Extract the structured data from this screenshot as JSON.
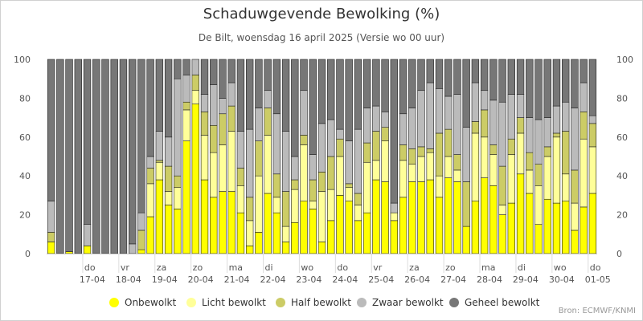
{
  "chart_data": {
    "type": "bar",
    "stacked": true,
    "title": "Schaduwgevende Bewolking (%)",
    "subtitle": "De Bilt, woensdag 16 april 2025 (Versie wo 00 uur)",
    "credit": "Bron: ECMWF/KNMI",
    "ylim": [
      0,
      100
    ],
    "yticks": [
      0,
      20,
      40,
      60,
      80,
      100
    ],
    "grid": false,
    "legend_position": "bottom",
    "x_day_labels": [
      {
        "day": "do",
        "date": "17-04"
      },
      {
        "day": "vr",
        "date": "18-04"
      },
      {
        "day": "za",
        "date": "19-04"
      },
      {
        "day": "zo",
        "date": "20-04"
      },
      {
        "day": "ma",
        "date": "21-04"
      },
      {
        "day": "di",
        "date": "22-04"
      },
      {
        "day": "wo",
        "date": "23-04"
      },
      {
        "day": "do",
        "date": "24-04"
      },
      {
        "day": "vr",
        "date": "25-04"
      },
      {
        "day": "za",
        "date": "26-04"
      },
      {
        "day": "zo",
        "date": "27-04"
      },
      {
        "day": "ma",
        "date": "28-04"
      },
      {
        "day": "di",
        "date": "29-04"
      },
      {
        "day": "wo",
        "date": "30-04"
      },
      {
        "day": "do",
        "date": "01-05"
      }
    ],
    "series": [
      {
        "name": "Onbewolkt",
        "color": "#ffff00",
        "values": [
          6,
          0,
          1,
          0,
          4,
          0,
          0,
          0,
          0,
          0,
          2,
          19,
          38,
          25,
          23,
          58,
          77,
          38,
          29,
          32,
          32,
          21,
          4,
          11,
          31,
          21,
          6,
          16,
          27,
          23,
          6,
          17,
          30,
          27,
          17,
          21,
          38,
          37,
          17,
          29,
          37,
          37,
          38,
          29,
          39,
          37,
          14,
          27,
          39,
          35,
          20,
          26,
          41,
          31,
          15,
          28,
          26,
          27,
          12,
          24,
          31
        ]
      },
      {
        "name": "Licht bewolkt",
        "color": "#ffff99",
        "values": [
          0,
          0,
          0,
          0,
          0,
          0,
          0,
          0,
          0,
          0,
          0,
          17,
          9,
          7,
          11,
          16,
          7,
          23,
          23,
          24,
          31,
          14,
          13,
          29,
          30,
          8,
          8,
          17,
          29,
          4,
          26,
          16,
          20,
          7,
          8,
          26,
          10,
          21,
          4,
          19,
          9,
          13,
          14,
          11,
          11,
          6,
          0,
          35,
          21,
          16,
          5,
          25,
          21,
          12,
          20,
          22,
          34,
          14,
          14,
          35,
          24
        ]
      },
      {
        "name": "Half bewolkt",
        "color": "#cccc66",
        "values": [
          5,
          0,
          0,
          0,
          0,
          0,
          0,
          0,
          0,
          0,
          10,
          8,
          1,
          13,
          6,
          4,
          8,
          12,
          14,
          16,
          13,
          9,
          12,
          18,
          14,
          12,
          18,
          5,
          5,
          11,
          10,
          17,
          9,
          2,
          6,
          10,
          15,
          7,
          0,
          8,
          8,
          5,
          2,
          22,
          14,
          8,
          23,
          6,
          14,
          5,
          20,
          8,
          8,
          9,
          11,
          5,
          2,
          22,
          17,
          14,
          12
        ]
      },
      {
        "name": "Zwaar bewolkt",
        "color": "#bbbbbb",
        "values": [
          16,
          0,
          0,
          0,
          11,
          0,
          0,
          0,
          0,
          5,
          9,
          6,
          15,
          15,
          50,
          14,
          8,
          9,
          21,
          8,
          12,
          19,
          35,
          17,
          9,
          31,
          31,
          12,
          23,
          13,
          25,
          19,
          5,
          22,
          33,
          18,
          13,
          8,
          5,
          16,
          21,
          29,
          34,
          23,
          17,
          31,
          28,
          20,
          10,
          23,
          33,
          23,
          12,
          18,
          23,
          15,
          14,
          15,
          32,
          15,
          4
        ]
      },
      {
        "name": "Geheel bewolkt",
        "color": "#777777",
        "values": [
          73,
          100,
          99,
          100,
          85,
          100,
          100,
          100,
          100,
          95,
          79,
          50,
          37,
          40,
          10,
          8,
          0,
          18,
          13,
          20,
          12,
          37,
          36,
          25,
          16,
          28,
          37,
          50,
          16,
          49,
          33,
          31,
          36,
          42,
          36,
          25,
          24,
          27,
          74,
          28,
          25,
          16,
          12,
          15,
          19,
          18,
          35,
          12,
          16,
          21,
          22,
          18,
          18,
          30,
          31,
          30,
          24,
          22,
          25,
          12,
          29
        ]
      }
    ]
  }
}
